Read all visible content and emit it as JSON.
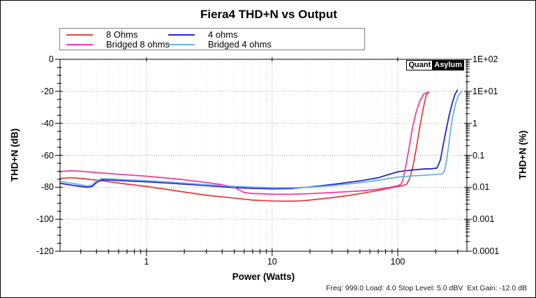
{
  "title": "Fiera4 THD+N vs Output",
  "badge": {
    "left": "Quant",
    "right": "Asylum"
  },
  "status_bar": "Freq: 999.0 Load: 4.0 Stop Level: 5.0 dBV  Ext Gain: -12.0 dB",
  "axis": {
    "x_title": "Power (Watts)",
    "y_left_title": "THD+N (dB)",
    "y_right_title": "THD+N (%)"
  },
  "chart_data": {
    "type": "line",
    "title": "Fiera4 THD+N vs Output",
    "xlabel": "Power (Watts)",
    "ylabel": "THD+N (dB)",
    "ylabel_right": "THD+N (%)",
    "x_scale": "log",
    "x_range": [
      0.205,
      355
    ],
    "y_left_range": [
      -120,
      0
    ],
    "y_right_range_percent": [
      0.0001,
      100
    ],
    "x_ticks": [
      "1",
      "10",
      "100"
    ],
    "x_tick_values": [
      1,
      10,
      100
    ],
    "y_left_ticks": [
      "0",
      "-20",
      "-40",
      "-60",
      "-80",
      "-100",
      "-120"
    ],
    "y_left_tick_values": [
      0,
      -20,
      -40,
      -60,
      -80,
      -100,
      -120
    ],
    "y_right_ticks": [
      "1E+02",
      "1E+01",
      "1",
      "0.1",
      "0.01",
      "0.001",
      "0.0001"
    ],
    "grid": "dotted, major and log-minor verticals, major horizontals",
    "legend_position": "top-left",
    "colors": {
      "grid_major": "#aeaeae",
      "grid_minor": "#e3e3e3",
      "axis": "#000000"
    },
    "series": [
      {
        "name": "8 Ohms",
        "color": "#e8413c",
        "points": [
          [
            0.205,
            -74.5
          ],
          [
            0.25,
            -74
          ],
          [
            0.3,
            -74.5
          ],
          [
            0.4,
            -75.5
          ],
          [
            0.5,
            -76.5
          ],
          [
            0.7,
            -78
          ],
          [
            1,
            -79.5
          ],
          [
            1.5,
            -81.5
          ],
          [
            2,
            -83
          ],
          [
            3,
            -85
          ],
          [
            4,
            -86
          ],
          [
            5,
            -86.8
          ],
          [
            7,
            -88
          ],
          [
            10,
            -88.6
          ],
          [
            13,
            -88.7
          ],
          [
            16,
            -88.6
          ],
          [
            20,
            -88
          ],
          [
            30,
            -86.5
          ],
          [
            40,
            -85.2
          ],
          [
            50,
            -84
          ],
          [
            70,
            -82
          ],
          [
            100,
            -79.5
          ],
          [
            110,
            -79
          ],
          [
            118,
            -78
          ],
          [
            125,
            -74
          ],
          [
            132,
            -67
          ],
          [
            140,
            -56
          ],
          [
            150,
            -42
          ],
          [
            160,
            -30
          ],
          [
            168,
            -23
          ],
          [
            174,
            -20.6
          ]
        ]
      },
      {
        "name": "4 ohms",
        "color": "#2424cc",
        "points": [
          [
            0.205,
            -77.5
          ],
          [
            0.25,
            -78.6
          ],
          [
            0.3,
            -79.5
          ],
          [
            0.34,
            -80
          ],
          [
            0.37,
            -79.5
          ],
          [
            0.4,
            -77
          ],
          [
            0.44,
            -75.4
          ],
          [
            0.5,
            -75.4
          ],
          [
            0.7,
            -76
          ],
          [
            1,
            -76.6
          ],
          [
            1.5,
            -77.4
          ],
          [
            2,
            -78
          ],
          [
            3,
            -79
          ],
          [
            5,
            -80.2
          ],
          [
            7,
            -80.7
          ],
          [
            10,
            -81
          ],
          [
            14,
            -80.8
          ],
          [
            20,
            -79.8
          ],
          [
            30,
            -78.3
          ],
          [
            50,
            -76
          ],
          [
            70,
            -74
          ],
          [
            100,
            -70.3
          ],
          [
            130,
            -69.2
          ],
          [
            160,
            -68.6
          ],
          [
            185,
            -68.4
          ],
          [
            205,
            -68
          ],
          [
            212,
            -65.5
          ],
          [
            218,
            -63
          ],
          [
            228,
            -55
          ],
          [
            240,
            -46
          ],
          [
            255,
            -36
          ],
          [
            270,
            -28
          ],
          [
            285,
            -22
          ],
          [
            298,
            -19.3
          ]
        ]
      },
      {
        "name": "Bridged 8 ohms",
        "color": "#f43ba1",
        "points": [
          [
            0.205,
            -70.2
          ],
          [
            0.25,
            -69.7
          ],
          [
            0.3,
            -70
          ],
          [
            0.4,
            -70.8
          ],
          [
            0.5,
            -71.4
          ],
          [
            0.7,
            -72.2
          ],
          [
            1,
            -73.1
          ],
          [
            1.5,
            -74.3
          ],
          [
            2,
            -75.3
          ],
          [
            3,
            -77
          ],
          [
            4,
            -78.4
          ],
          [
            5,
            -80
          ],
          [
            5.5,
            -81.8
          ],
          [
            6,
            -83.3
          ],
          [
            7,
            -83.9
          ],
          [
            10,
            -84.3
          ],
          [
            14,
            -84.4
          ],
          [
            20,
            -84
          ],
          [
            30,
            -83.3
          ],
          [
            50,
            -82.3
          ],
          [
            70,
            -81.2
          ],
          [
            90,
            -79.8
          ],
          [
            100,
            -79
          ],
          [
            106,
            -78.2
          ],
          [
            110,
            -75
          ],
          [
            115,
            -68
          ],
          [
            122,
            -57
          ],
          [
            130,
            -44
          ],
          [
            140,
            -33
          ],
          [
            150,
            -26
          ],
          [
            160,
            -22
          ],
          [
            170,
            -20.8
          ],
          [
            178,
            -20.4
          ]
        ]
      },
      {
        "name": "Bridged 4 ohms",
        "color": "#6cafe8",
        "points": [
          [
            0.205,
            -76.4
          ],
          [
            0.25,
            -77.4
          ],
          [
            0.3,
            -78.4
          ],
          [
            0.34,
            -79.3
          ],
          [
            0.37,
            -78.5
          ],
          [
            0.4,
            -76
          ],
          [
            0.44,
            -74.6
          ],
          [
            0.5,
            -74.7
          ],
          [
            0.7,
            -75.3
          ],
          [
            1,
            -75.9
          ],
          [
            1.5,
            -76.7
          ],
          [
            2,
            -77.4
          ],
          [
            3,
            -78.4
          ],
          [
            5,
            -79.4
          ],
          [
            7,
            -79.9
          ],
          [
            10,
            -80.3
          ],
          [
            15,
            -80.3
          ],
          [
            20,
            -80
          ],
          [
            30,
            -79
          ],
          [
            50,
            -77.2
          ],
          [
            70,
            -75.6
          ],
          [
            100,
            -73.6
          ],
          [
            130,
            -72.9
          ],
          [
            160,
            -72.5
          ],
          [
            200,
            -72
          ],
          [
            225,
            -71.6
          ],
          [
            235,
            -70
          ],
          [
            245,
            -63
          ],
          [
            255,
            -53
          ],
          [
            265,
            -43
          ],
          [
            275,
            -35
          ],
          [
            290,
            -27
          ],
          [
            305,
            -22.5
          ],
          [
            318,
            -20.6
          ],
          [
            326,
            -20
          ]
        ]
      }
    ]
  }
}
